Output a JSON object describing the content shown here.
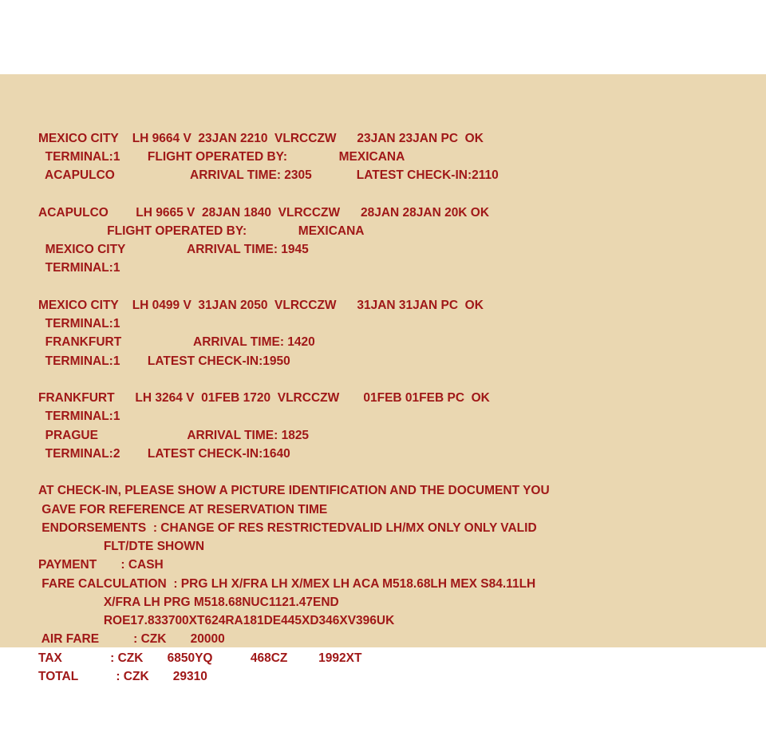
{
  "colors": {
    "background": "#ead7b1",
    "text": "#a01818"
  },
  "lines": [
    "MEXICO CITY    LH 9664 V  23JAN 2210  VLRCCZW      23JAN 23JAN PC  OK",
    "  TERMINAL:1        FLIGHT OPERATED BY:               MEXICANA",
    "  ACAPULCO                      ARRIVAL TIME: 2305             LATEST CHECK-IN:2110",
    "",
    "ACAPULCO        LH 9665 V  28JAN 1840  VLRCCZW      28JAN 28JAN 20K OK",
    "                    FLIGHT OPERATED BY:               MEXICANA",
    "  MEXICO CITY                  ARRIVAL TIME: 1945",
    "  TERMINAL:1",
    "",
    "MEXICO CITY    LH 0499 V  31JAN 2050  VLRCCZW      31JAN 31JAN PC  OK",
    "  TERMINAL:1",
    "  FRANKFURT                     ARRIVAL TIME: 1420",
    "  TERMINAL:1        LATEST CHECK-IN:1950",
    "",
    "FRANKFURT      LH 3264 V  01FEB 1720  VLRCCZW       01FEB 01FEB PC  OK",
    "  TERMINAL:1",
    "  PRAGUE                          ARRIVAL TIME: 1825",
    "  TERMINAL:2        LATEST CHECK-IN:1640",
    "",
    "AT CHECK-IN, PLEASE SHOW A PICTURE IDENTIFICATION AND THE DOCUMENT YOU",
    " GAVE FOR REFERENCE AT RESERVATION TIME",
    " ENDORSEMENTS  : CHANGE OF RES RESTRICTEDVALID LH/MX ONLY ONLY VALID",
    "                   FLT/DTE SHOWN",
    "PAYMENT       : CASH",
    " FARE CALCULATION  : PRG LH X/FRA LH X/MEX LH ACA M518.68LH MEX S84.11LH",
    "                   X/FRA LH PRG M518.68NUC1121.47END",
    "                   ROE17.833700XT624RA181DE445XD346XV396UK",
    " AIR FARE          : CZK       20000",
    "TAX              : CZK       6850YQ           468CZ         1992XT",
    "TOTAL           : CZK       29310"
  ]
}
